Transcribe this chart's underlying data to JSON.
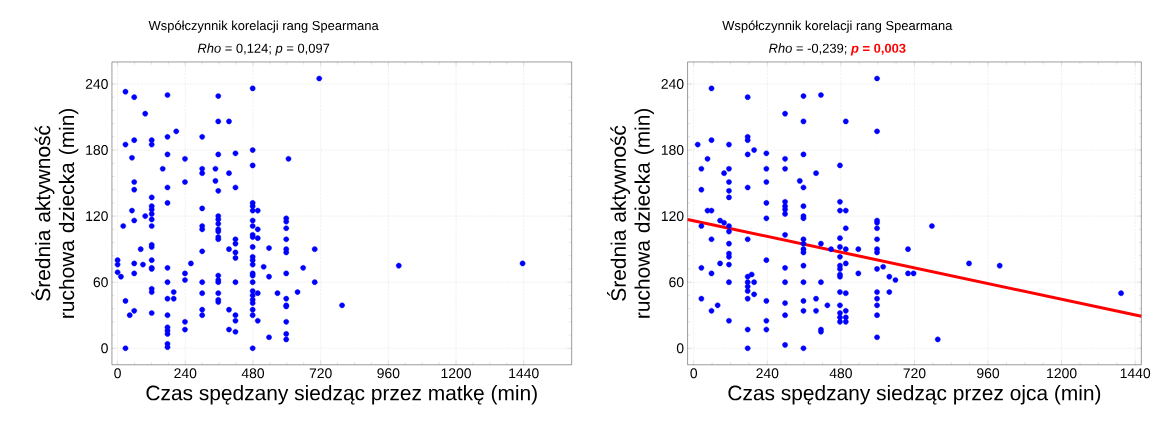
{
  "chart_data": [
    {
      "type": "scatter",
      "title": "Współczynnik korelacji rang Spearmana",
      "subtitle": "*Rho* = 0,124; *p* = 0,097",
      "xlabel": "Czas spędzany siedząc przez matkę (min)",
      "ylabel": "Średnia aktywność ruchowa dziecka (min)",
      "xlim": [
        -20,
        1610
      ],
      "ylim": [
        -15,
        260
      ],
      "xticks": [
        0,
        240,
        480,
        720,
        960,
        1200,
        1440
      ],
      "yticks": [
        0,
        60,
        120,
        180,
        240
      ],
      "grid": true,
      "series": [
        {
          "marker": "circle",
          "color": "#0000ff",
          "x": [
            28,
            59,
            177,
            357,
            479,
            715,
            98,
            357,
            395,
            208,
            28,
            59,
            121,
            121,
            177,
            300,
            51,
            177,
            239,
            357,
            418,
            479,
            606,
            479,
            160,
            300,
            300,
            347,
            395,
            59,
            59,
            239,
            347,
            357,
            418,
            177,
            121,
            121,
            121,
            121,
            177,
            51,
            59,
            20,
            98,
            121,
            121,
            300,
            300,
            300,
            357,
            357,
            357,
            357,
            357,
            357,
            357,
            479,
            479,
            479,
            497,
            479,
            479,
            497,
            479,
            479,
            497,
            479,
            418,
            418,
            395,
            418,
            418,
            300,
            121,
            121,
            82,
            0,
            0,
            0,
            12,
            59,
            90,
            59,
            121,
            121,
            121,
            177,
            260,
            239,
            239,
            177,
            300,
            357,
            357,
            357,
            418,
            479,
            479,
            479,
            479,
            479,
            479,
            518,
            537,
            537,
            598,
            598,
            598,
            598,
            598,
            598,
            598,
            658,
            699,
            699,
            121,
            121,
            121,
            199,
            177,
            199,
            177,
            177,
            177,
            177,
            177,
            177,
            239,
            239,
            300,
            300,
            300,
            357,
            357,
            357,
            395,
            395,
            418,
            418,
            418,
            479,
            497,
            479,
            479,
            479,
            479,
            479,
            497,
            479,
            567,
            638,
            598,
            598,
            598,
            598,
            598,
            598,
            537,
            28,
            59,
            43,
            28,
            796,
            997,
            1436
          ],
          "values": [
            233,
            228,
            230,
            229,
            236,
            245,
            213,
            206,
            206,
            197,
            185,
            189,
            189,
            185,
            192,
            192,
            173,
            176,
            172,
            176,
            177,
            180,
            172,
            166,
            163,
            163,
            159,
            163,
            159,
            151,
            144,
            151,
            152,
            143,
            146,
            146,
            137,
            129,
            126,
            122,
            132,
            125,
            116,
            111,
            120,
            117,
            111,
            127,
            111,
            108,
            120,
            117,
            113,
            108,
            106,
            101,
            99,
            132,
            129,
            125,
            125,
            116,
            111,
            108,
            103,
            101,
            100,
            92,
            99,
            95,
            90,
            87,
            82,
            88,
            94,
            92,
            90,
            80,
            76,
            69,
            65,
            77,
            76,
            68,
            80,
            73,
            72,
            73,
            77,
            68,
            62,
            60,
            60,
            66,
            62,
            60,
            60,
            83,
            80,
            76,
            68,
            66,
            60,
            74,
            91,
            65,
            118,
            115,
            109,
            99,
            90,
            87,
            68,
            73,
            90,
            60,
            54,
            51,
            32,
            51,
            45,
            45,
            30,
            19,
            16,
            13,
            4,
            1,
            24,
            17,
            50,
            35,
            30,
            50,
            44,
            42,
            35,
            17,
            30,
            25,
            15,
            52,
            50,
            48,
            44,
            41,
            35,
            30,
            25,
            0,
            50,
            51,
            45,
            39,
            38,
            24,
            13,
            8,
            10,
            43,
            34,
            30,
            0,
            39,
            75,
            77
          ]
        }
      ]
    },
    {
      "type": "scatter",
      "title": "Współczynnik korelacji rang Spearmana",
      "subtitle": "*Rho* = -0,239;",
      "annotations": [
        "*p* = 0,003"
      ],
      "xlabel": "Czas spędzany siedząc przez ojca (min)",
      "ylabel": "Średnia aktywność ruchowa dziecka (min)",
      "xlim": [
        -20,
        1460
      ],
      "ylim": [
        -15,
        260
      ],
      "xticks": [
        0,
        240,
        480,
        720,
        960,
        1200,
        1440
      ],
      "yticks": [
        0,
        60,
        120,
        180,
        240
      ],
      "grid": true,
      "series": [
        {
          "marker": "circle",
          "color": "#0000ff",
          "x": [
            58,
            176,
            358,
            415,
            598,
            298,
            358,
            496,
            598,
            13,
            58,
            115,
            176,
            176,
            197,
            176,
            237,
            45,
            298,
            358,
            25,
            115,
            237,
            298,
            477,
            99,
            399,
            115,
            237,
            346,
            358,
            176,
            25,
            115,
            115,
            298,
            298,
            298,
            298,
            237,
            358,
            477,
            477,
            496,
            45,
            58,
            358,
            358,
            237,
            86,
            99,
            25,
            115,
            115,
            496,
            598,
            598,
            598,
            598,
            598,
            598,
            298,
            58,
            176,
            358,
            358,
            358,
            358,
            115,
            115,
            115,
            115,
            415,
            448,
            477,
            477,
            477,
            477,
            477,
            477,
            477,
            496,
            496,
            537,
            537,
            618,
            598,
            638,
            658,
            699,
            699,
            717,
            237,
            86,
            25,
            58,
            115,
            176,
            189,
            176,
            197,
            176,
            176,
            197,
            176,
            298,
            298,
            358,
            358,
            415,
            25,
            58,
            78,
            115,
            176,
            176,
            237,
            237,
            237,
            298,
            298,
            298,
            358,
            358,
            358,
            399,
            399,
            436,
            415,
            415,
            477,
            496,
            477,
            477,
            477,
            477,
            496,
            496,
            496,
            598,
            598,
            598,
            598,
            598,
            638,
            777,
            898,
            998,
            796,
            1394
          ],
          "values": [
            236,
            228,
            229,
            230,
            245,
            213,
            206,
            206,
            197,
            185,
            189,
            185,
            192,
            189,
            180,
            176,
            177,
            172,
            172,
            176,
            163,
            163,
            163,
            163,
            166,
            159,
            159,
            151,
            151,
            152,
            146,
            146,
            144,
            143,
            137,
            133,
            129,
            126,
            122,
            132,
            129,
            133,
            125,
            125,
            125,
            125,
            120,
            118,
            118,
            116,
            114,
            111,
            111,
            106,
            109,
            116,
            114,
            109,
            99,
            90,
            87,
            103,
            99,
            99,
            99,
            95,
            90,
            87,
            95,
            86,
            83,
            76,
            95,
            90,
            100,
            92,
            83,
            75,
            72,
            67,
            65,
            90,
            77,
            90,
            68,
            74,
            72,
            65,
            62,
            90,
            68,
            68,
            80,
            77,
            73,
            68,
            60,
            65,
            67,
            60,
            60,
            56,
            52,
            49,
            45,
            73,
            60,
            75,
            60,
            60,
            45,
            34,
            39,
            25,
            17,
            0,
            43,
            25,
            17,
            41,
            30,
            3,
            43,
            34,
            0,
            45,
            34,
            39,
            17,
            15,
            51,
            50,
            39,
            32,
            28,
            24,
            34,
            28,
            24,
            51,
            45,
            39,
            30,
            10,
            51,
            111,
            77,
            75,
            8,
            50
          ]
        },
        {
          "type": "line",
          "color": "#ff0000",
          "x": [
            -20,
            1460
          ],
          "values": [
            117,
            29
          ]
        }
      ]
    }
  ]
}
